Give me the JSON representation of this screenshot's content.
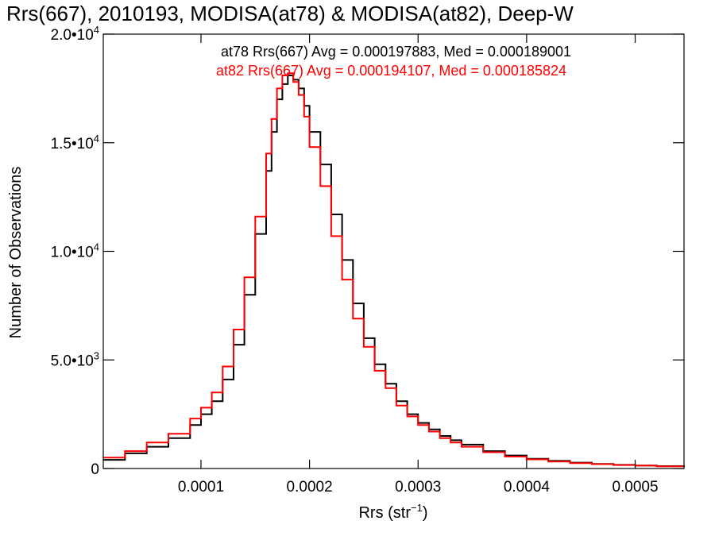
{
  "chart_data": {
    "type": "line",
    "title": "Rrs(667), 2010193, MODISA(at78) & MODISA(at82), Deep-W",
    "xlabel": "Rrs (str",
    "xlabel_sup": "−1",
    "xlabel_close": ")",
    "ylabel": "Number of Observations",
    "xlim": [
      1e-05,
      0.000545
    ],
    "ylim": [
      0,
      20000
    ],
    "x_ticks": [
      {
        "value": 0.0001,
        "label": "0.0001"
      },
      {
        "value": 0.0002,
        "label": "0.0002"
      },
      {
        "value": 0.0003,
        "label": "0.0003"
      },
      {
        "value": 0.0004,
        "label": "0.0004"
      },
      {
        "value": 0.0005,
        "label": "0.0005"
      }
    ],
    "y_ticks": [
      {
        "value": 0,
        "base": "0",
        "exp": ""
      },
      {
        "value": 5000,
        "base": "5.0•10",
        "exp": "3"
      },
      {
        "value": 10000,
        "base": "1.0•10",
        "exp": "4"
      },
      {
        "value": 15000,
        "base": "1.5•10",
        "exp": "4"
      },
      {
        "value": 20000,
        "base": "2.0•10",
        "exp": "4"
      }
    ],
    "grid": false,
    "legend_placement": "top-right",
    "series": [
      {
        "name": "at78 Rrs(667) Avg = 0.000197883, Med = 0.000189001",
        "color": "#000000",
        "x": [
          1e-05,
          3e-05,
          5e-05,
          7e-05,
          9e-05,
          0.0001,
          0.00011,
          0.00012,
          0.00013,
          0.00014,
          0.00015,
          0.00016,
          0.000165,
          0.00017,
          0.000175,
          0.00018,
          0.000185,
          0.00019,
          0.000195,
          0.0002,
          0.00021,
          0.00022,
          0.00023,
          0.00024,
          0.00025,
          0.00026,
          0.00027,
          0.00028,
          0.00029,
          0.0003,
          0.00031,
          0.00032,
          0.00033,
          0.00034,
          0.00036,
          0.00038,
          0.0004,
          0.00042,
          0.00044,
          0.00046,
          0.00048,
          0.0005,
          0.00052,
          0.000545
        ],
        "y": [
          400,
          700,
          1000,
          1400,
          2000,
          2500,
          3100,
          4100,
          5700,
          8000,
          10800,
          13700,
          15500,
          17000,
          17700,
          18100,
          17900,
          17500,
          16700,
          15500,
          14000,
          11700,
          9600,
          7600,
          6000,
          4800,
          3900,
          3100,
          2500,
          2100,
          1800,
          1500,
          1300,
          1100,
          800,
          600,
          450,
          350,
          270,
          210,
          170,
          140,
          110,
          80
        ]
      },
      {
        "name": "at82 Rrs(667) Avg = 0.000194107, Med = 0.000185824",
        "color": "#ff0000",
        "x": [
          1e-05,
          3e-05,
          5e-05,
          7e-05,
          9e-05,
          0.0001,
          0.00011,
          0.00012,
          0.00013,
          0.00014,
          0.00015,
          0.00016,
          0.000165,
          0.00017,
          0.000175,
          0.00018,
          0.000185,
          0.00019,
          0.000195,
          0.0002,
          0.00021,
          0.00022,
          0.00023,
          0.00024,
          0.00025,
          0.00026,
          0.00027,
          0.00028,
          0.00029,
          0.0003,
          0.00031,
          0.00032,
          0.00033,
          0.00034,
          0.00036,
          0.00038,
          0.0004,
          0.00042,
          0.00044,
          0.00046,
          0.00048,
          0.0005,
          0.00052,
          0.000545
        ],
        "y": [
          500,
          800,
          1200,
          1600,
          2300,
          2800,
          3500,
          4700,
          6400,
          8800,
          11600,
          14500,
          16100,
          17500,
          18100,
          18200,
          17800,
          17200,
          16200,
          14800,
          13000,
          10700,
          8700,
          6900,
          5600,
          4500,
          3700,
          2900,
          2400,
          2000,
          1700,
          1400,
          1200,
          1000,
          750,
          550,
          420,
          320,
          250,
          200,
          160,
          130,
          100,
          70
        ]
      }
    ]
  }
}
